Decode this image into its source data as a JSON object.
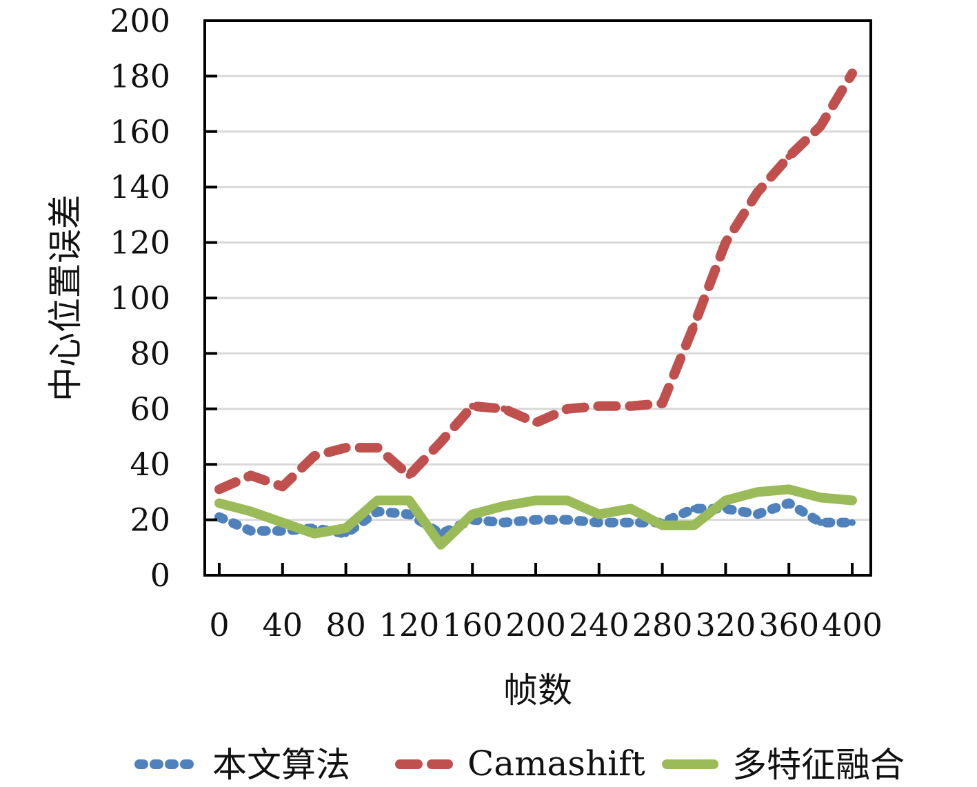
{
  "colors": {
    "series_blue": "#4F81BD",
    "series_red": "#C0504D",
    "series_green": "#9BBB59",
    "grid": "#D9D9D9",
    "axis": "#000000",
    "text": "#111111"
  },
  "chart_data": {
    "type": "line",
    "title": "",
    "xlabel": "帧数",
    "ylabel": "中心位置误差",
    "xlim": [
      0,
      400
    ],
    "ylim": [
      0,
      200
    ],
    "x_ticks": [
      "0",
      "40",
      "80",
      "120",
      "160",
      "200",
      "240",
      "280",
      "320",
      "360",
      "400"
    ],
    "y_ticks": [
      "0",
      "20",
      "40",
      "60",
      "80",
      "100",
      "120",
      "140",
      "160",
      "180",
      "200"
    ],
    "grid": "horizontal",
    "legend_position": "bottom",
    "x": [
      0,
      20,
      40,
      60,
      80,
      100,
      120,
      140,
      160,
      180,
      200,
      220,
      240,
      260,
      280,
      300,
      320,
      340,
      360,
      380,
      400
    ],
    "series": [
      {
        "name": "本文算法",
        "style": "dotted",
        "color": "#4F81BD",
        "values": [
          21,
          16,
          16,
          17,
          15,
          23,
          22,
          15,
          20,
          19,
          20,
          20,
          19,
          19,
          19,
          24,
          24,
          22,
          26,
          19,
          19
        ]
      },
      {
        "name": "Camashift",
        "style": "dashed",
        "color": "#C0504D",
        "values": [
          31,
          36,
          32,
          43,
          46,
          46,
          36,
          48,
          61,
          60,
          55,
          60,
          61,
          61,
          62,
          90,
          120,
          138,
          151,
          162,
          181
        ]
      },
      {
        "name": "多特征融合",
        "style": "solid",
        "color": "#9BBB59",
        "values": [
          26,
          23,
          19,
          15,
          17,
          27,
          27,
          11,
          22,
          25,
          27,
          27,
          22,
          24,
          18,
          18,
          27,
          30,
          31,
          28,
          27
        ]
      }
    ]
  }
}
